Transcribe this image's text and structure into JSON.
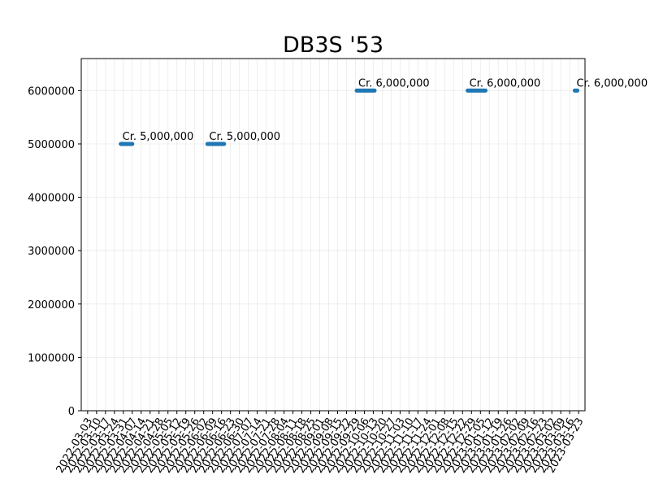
{
  "chart_data": {
    "type": "scatter",
    "title": "DB3S '53",
    "xlabel": "",
    "ylabel": "",
    "ylim": [
      0,
      6600000
    ],
    "y_ticks": [
      0,
      1000000,
      2000000,
      3000000,
      4000000,
      5000000,
      6000000
    ],
    "y_tick_labels": [
      "0",
      "1000000",
      "2000000",
      "3000000",
      "4000000",
      "5000000",
      "6000000"
    ],
    "grid": true,
    "legend": "none",
    "series_color": "#1f77b4",
    "x_ticks": [
      "2022-03-03",
      "2022-03-10",
      "2022-03-17",
      "2022-03-24",
      "2022-03-31",
      "2022-04-07",
      "2022-04-14",
      "2022-04-21",
      "2022-04-28",
      "2022-05-05",
      "2022-05-12",
      "2022-05-19",
      "2022-05-26",
      "2022-06-02",
      "2022-06-09",
      "2022-06-16",
      "2022-06-23",
      "2022-06-30",
      "2022-07-07",
      "2022-07-14",
      "2022-07-21",
      "2022-07-28",
      "2022-08-04",
      "2022-08-11",
      "2022-08-18",
      "2022-08-25",
      "2022-09-01",
      "2022-09-08",
      "2022-09-15",
      "2022-09-22",
      "2022-09-29",
      "2022-10-06",
      "2022-10-13",
      "2022-10-20",
      "2022-10-27",
      "2022-11-03",
      "2022-11-10",
      "2022-11-17",
      "2022-11-24",
      "2022-12-01",
      "2022-12-08",
      "2022-12-15",
      "2022-12-22",
      "2022-12-29",
      "2023-01-05",
      "2023-01-12",
      "2023-01-19",
      "2023-01-26",
      "2023-02-02",
      "2023-02-09",
      "2023-02-16",
      "2023-02-23",
      "2023-03-02",
      "2023-03-09",
      "2023-03-16",
      "2023-03-23"
    ],
    "x_range": [
      "2022-02-26",
      "2023-03-28"
    ],
    "segments": [
      {
        "start": "2022-03-29",
        "end": "2022-04-07",
        "value": 5000000,
        "label": "Cr. 5,000,000"
      },
      {
        "start": "2022-06-05",
        "end": "2022-06-18",
        "value": 5000000,
        "label": "Cr. 5,000,000"
      },
      {
        "start": "2022-09-30",
        "end": "2022-10-14",
        "value": 6000000,
        "label": "Cr. 6,000,000"
      },
      {
        "start": "2022-12-26",
        "end": "2023-01-09",
        "value": 6000000,
        "label": "Cr. 6,000,000"
      },
      {
        "start": "2023-03-20",
        "end": "2023-03-22",
        "value": 6000000,
        "label": "Cr. 6,000,000"
      }
    ]
  }
}
